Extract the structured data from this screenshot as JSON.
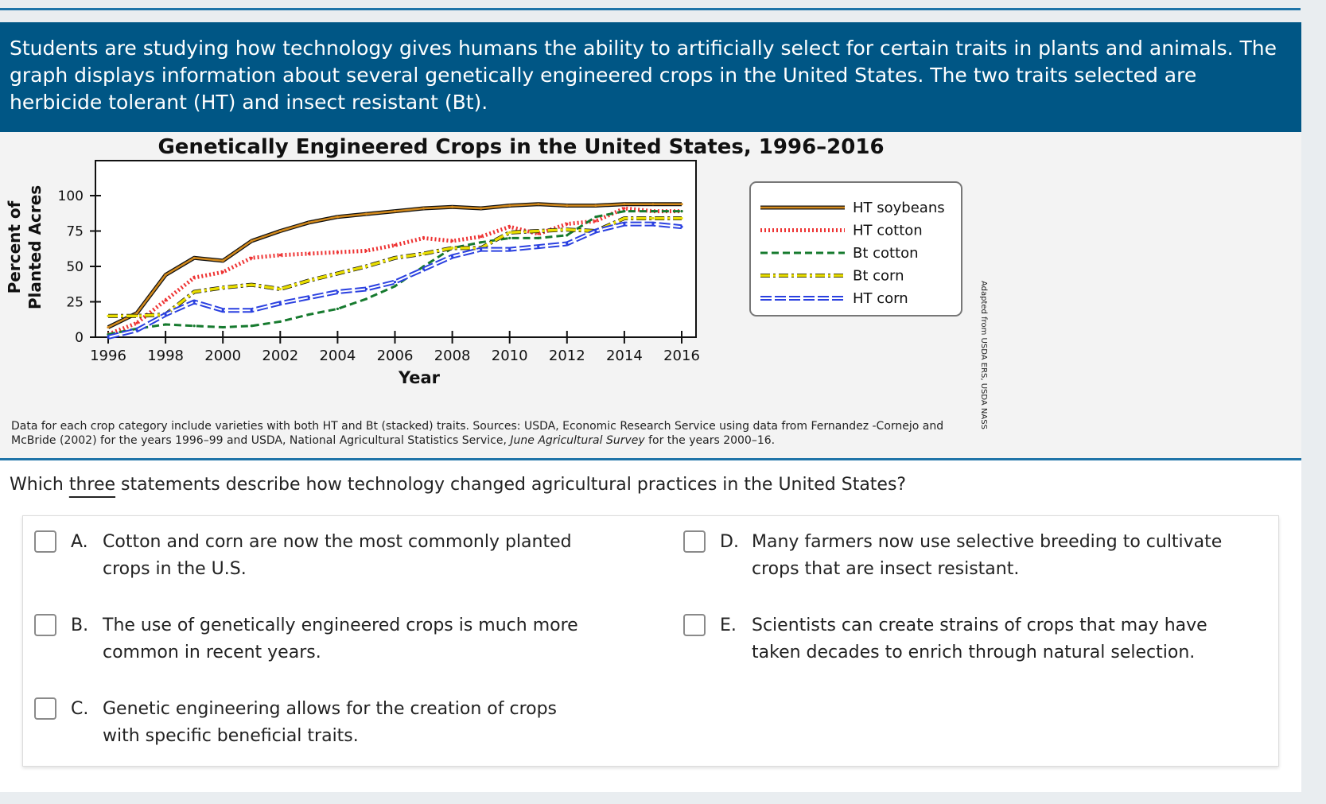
{
  "stem": "Students are studying how technology gives humans the ability to artificially select for certain traits in plants and animals. The graph displays information about several genetically engineered crops in the United States. The two traits selected are herbicide tolerant (HT) and insect resistant (Bt).",
  "footnote": {
    "part1": "Data for each crop category include varieties with both HT and Bt (stacked) traits. Sources: USDA, Economic Research Service using data from Fernandez -Cornejo and McBride (2002) for the years 1996–99 and USDA, National Agricultural Statistics Service, ",
    "italic": "June Agricultural Survey",
    "part2": " for the years 2000–16."
  },
  "source_note": "Adapted from USDA ERS, USDA NASS",
  "question": {
    "before": "Which ",
    "underlined": "three",
    "after": " statements describe how technology changed agricultural practices in the United States?"
  },
  "options": [
    {
      "letter": "A.",
      "text": "Cotton and corn are now the most commonly planted crops in the U.S."
    },
    {
      "letter": "B.",
      "text": "The use of genetically engineered crops is much more common in recent years."
    },
    {
      "letter": "C.",
      "text": "Genetic engineering allows for the creation of crops with specific beneficial traits."
    },
    {
      "letter": "D.",
      "text": "Many farmers now use selective breeding to cultivate crops that are insect resistant."
    },
    {
      "letter": "E.",
      "text": "Scientists can create strains of crops that may have taken decades to enrich through natural selection."
    }
  ],
  "chart_data": {
    "type": "line",
    "title": "Genetically Engineered Crops in the United States, 1996–2016",
    "xlabel": "Year",
    "ylabel": [
      "Percent of",
      "Planted Acres"
    ],
    "xlim": [
      1996,
      2016
    ],
    "ylim": [
      0,
      100
    ],
    "xticks": [
      1996,
      1998,
      2000,
      2002,
      2004,
      2006,
      2008,
      2010,
      2012,
      2014,
      2016
    ],
    "yticks": [
      0,
      25,
      50,
      75,
      100
    ],
    "grid": false,
    "legend_position": "right",
    "x": [
      1996,
      1997,
      1998,
      1999,
      2000,
      2001,
      2002,
      2003,
      2004,
      2005,
      2006,
      2007,
      2008,
      2009,
      2010,
      2011,
      2012,
      2013,
      2014,
      2015,
      2016
    ],
    "series": [
      {
        "name": "HT soybeans",
        "color": "#d38a1c",
        "style": "solid",
        "values": [
          7,
          17,
          44,
          56,
          54,
          68,
          75,
          81,
          85,
          87,
          89,
          91,
          92,
          91,
          93,
          94,
          93,
          93,
          94,
          94,
          94
        ]
      },
      {
        "name": "HT cotton",
        "color": "#ee3333",
        "style": "dotted",
        "values": [
          2,
          10,
          26,
          42,
          46,
          56,
          58,
          59,
          60,
          61,
          65,
          70,
          68,
          71,
          78,
          73,
          80,
          82,
          91,
          89,
          89
        ]
      },
      {
        "name": "Bt cotton",
        "color": "#167a2e",
        "style": "dashed",
        "values": [
          2,
          6,
          9,
          8,
          7,
          8,
          11,
          16,
          20,
          27,
          36,
          50,
          63,
          67,
          70,
          70,
          72,
          85,
          89,
          89,
          89
        ]
      },
      {
        "name": "Bt corn",
        "color": "#e8dd00",
        "style": "dashdot",
        "values": [
          15,
          15,
          16,
          32,
          35,
          37,
          34,
          40,
          45,
          50,
          56,
          59,
          63,
          63,
          74,
          75,
          76,
          75,
          84,
          84,
          84
        ]
      },
      {
        "name": "HT corn",
        "color": "#2a40e0",
        "style": "double",
        "values": [
          0,
          5,
          16,
          25,
          19,
          19,
          24,
          28,
          32,
          34,
          39,
          48,
          57,
          62,
          62,
          64,
          66,
          75,
          80,
          80,
          78
        ]
      }
    ]
  }
}
